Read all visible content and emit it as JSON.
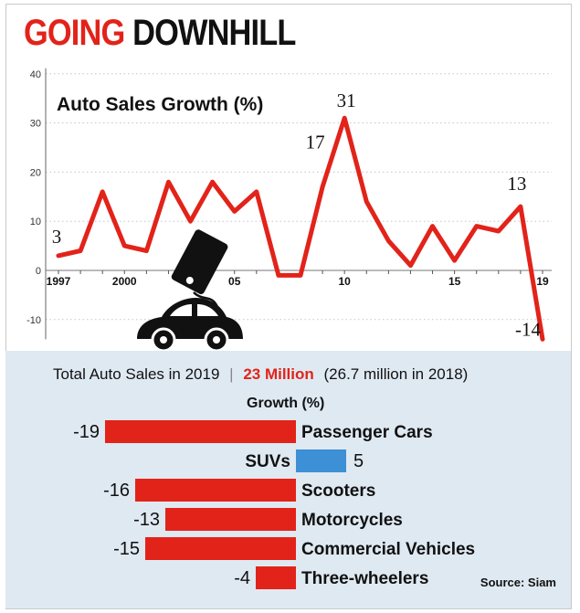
{
  "headline": {
    "part1": "GOING",
    "part2": "DOWNHILL"
  },
  "colors": {
    "red": "#e2231a",
    "blue": "#3d8fd6",
    "grid": "#b9c8d6",
    "panel": "#dfe9f2"
  },
  "chart_data": [
    {
      "type": "line",
      "title": "Auto Sales Growth (%)",
      "xlabel": "",
      "ylabel": "",
      "ylim": [
        -15,
        40
      ],
      "yticks": [
        -10,
        0,
        10,
        20,
        30,
        40
      ],
      "grid": true,
      "x": [
        1997,
        1998,
        1999,
        2000,
        2001,
        2002,
        2003,
        2004,
        2005,
        2006,
        2007,
        2008,
        2009,
        2010,
        2011,
        2012,
        2013,
        2014,
        2015,
        2016,
        2017,
        2018,
        2019
      ],
      "values": [
        3,
        4,
        16,
        5,
        4,
        18,
        10,
        18,
        12,
        16,
        -1,
        -1,
        17,
        31,
        14,
        6,
        1,
        9,
        2,
        9,
        8,
        13,
        -14
      ],
      "xtick_labels": [
        {
          "x": 1997,
          "label": "1997"
        },
        {
          "x": 2000,
          "label": "2000"
        },
        {
          "x": 2005,
          "label": "05"
        },
        {
          "x": 2010,
          "label": "10"
        },
        {
          "x": 2015,
          "label": "15"
        },
        {
          "x": 2019,
          "label": "19"
        }
      ],
      "annotations": [
        {
          "x": 1997,
          "label": "3"
        },
        {
          "x": 2009,
          "label": "17"
        },
        {
          "x": 2010,
          "label": "31"
        },
        {
          "x": 2018,
          "label": "13"
        },
        {
          "x": 2019,
          "label": "-14"
        }
      ]
    },
    {
      "type": "bar",
      "orientation": "horizontal",
      "title": "Growth (%)",
      "summary": {
        "prefix": "Total Auto Sales in 2019",
        "separator": "|",
        "highlight": "23 Million",
        "suffix": "(26.7 million in 2018)"
      },
      "categories": [
        "Passenger Cars",
        "SUVs",
        "Scooters",
        "Motorcycles",
        "Commercial Vehicles",
        "Three-wheelers"
      ],
      "values": [
        -19,
        5,
        -16,
        -13,
        -15,
        -4
      ],
      "value_labels": [
        "-19",
        "5",
        "-16",
        "-13",
        "-15",
        "-4"
      ],
      "source": "Source: Siam"
    }
  ]
}
